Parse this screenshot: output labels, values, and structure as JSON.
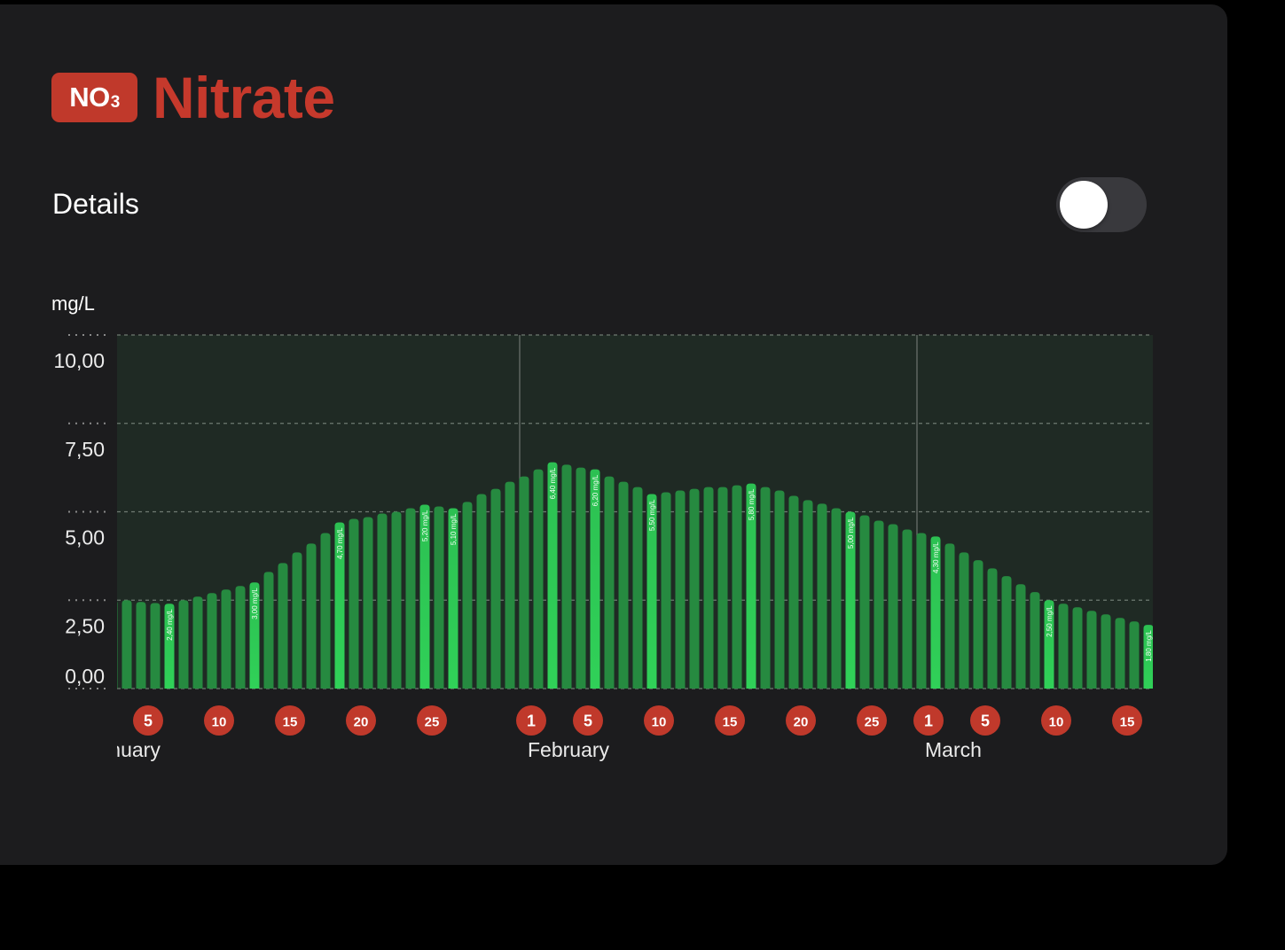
{
  "header": {
    "badge_text": "NO",
    "badge_sub": "3",
    "title": "Nitrate"
  },
  "details": {
    "label": "Details",
    "toggle_on": false
  },
  "colors": {
    "accent": "#c0392b",
    "bar": "#268a40",
    "bar_highlight": "#30d158",
    "plot_bg": "#1f2a24",
    "card_bg": "#1c1c1e"
  },
  "chart_data": {
    "type": "bar",
    "ylabel": "mg/L",
    "ylim": [
      0,
      10
    ],
    "yticks": [
      "0,00",
      "2,50",
      "5,00",
      "7,50",
      "10,00"
    ],
    "ytick_values": [
      0,
      2.5,
      5,
      7.5,
      10
    ],
    "grid": true,
    "months": [
      {
        "name": "January",
        "start": "01-01"
      },
      {
        "name": "February",
        "start": "02-01"
      },
      {
        "name": "March",
        "start": "03-01"
      }
    ],
    "day_ticks": [
      {
        "date": "01-05",
        "label": "5"
      },
      {
        "date": "01-10",
        "label": "10"
      },
      {
        "date": "01-15",
        "label": "15"
      },
      {
        "date": "01-20",
        "label": "20"
      },
      {
        "date": "01-25",
        "label": "25"
      },
      {
        "date": "02-01",
        "label": "1"
      },
      {
        "date": "02-05",
        "label": "5"
      },
      {
        "date": "02-10",
        "label": "10"
      },
      {
        "date": "02-15",
        "label": "15"
      },
      {
        "date": "02-20",
        "label": "20"
      },
      {
        "date": "02-25",
        "label": "25"
      },
      {
        "date": "03-01",
        "label": "1"
      },
      {
        "date": "03-05",
        "label": "5"
      },
      {
        "date": "03-10",
        "label": "10"
      },
      {
        "date": "03-15",
        "label": "15"
      }
    ],
    "first_date": "01-03",
    "values": [
      2.5,
      2.5,
      2.45,
      2.42,
      2.4,
      2.5,
      2.6,
      2.7,
      2.8,
      2.9,
      3.0,
      3.3,
      3.55,
      3.85,
      4.1,
      4.4,
      4.7,
      4.8,
      4.85,
      4.95,
      5.0,
      5.1,
      5.2,
      5.15,
      5.1,
      5.28,
      5.5,
      5.65,
      5.85,
      6.0,
      6.2,
      6.4,
      6.33,
      6.25,
      6.2,
      6.0,
      5.85,
      5.7,
      5.5,
      5.55,
      5.6,
      5.65,
      5.7,
      5.7,
      5.75,
      5.8,
      5.7,
      5.6,
      5.45,
      5.33,
      5.23,
      5.1,
      5.0,
      4.9,
      4.75,
      4.65,
      4.5,
      4.4,
      4.3,
      4.1,
      3.85,
      3.63,
      3.4,
      3.18,
      2.95,
      2.73,
      2.5,
      2.4,
      2.3,
      2.2,
      2.1,
      2.0,
      1.9,
      1.8
    ],
    "data_labels": [
      {
        "date": "01-07",
        "label": "2,40 mg/L"
      },
      {
        "date": "01-13",
        "label": "3,00 mg/L"
      },
      {
        "date": "01-19",
        "label": "4,70 mg/L"
      },
      {
        "date": "01-25",
        "label": "5,20 mg/L"
      },
      {
        "date": "01-27",
        "label": "5,10 mg/L"
      },
      {
        "date": "02-03",
        "label": "6,40 mg/L"
      },
      {
        "date": "02-06",
        "label": "6,20 mg/L"
      },
      {
        "date": "02-10",
        "label": "5,50 mg/L"
      },
      {
        "date": "02-17",
        "label": "5,80 mg/L"
      },
      {
        "date": "02-24",
        "label": "5,00 mg/L"
      },
      {
        "date": "03-02",
        "label": "4,30 mg/L"
      },
      {
        "date": "03-10",
        "label": "2,50 mg/L"
      },
      {
        "date": "03-17",
        "label": "1,80 mg/L"
      }
    ]
  }
}
